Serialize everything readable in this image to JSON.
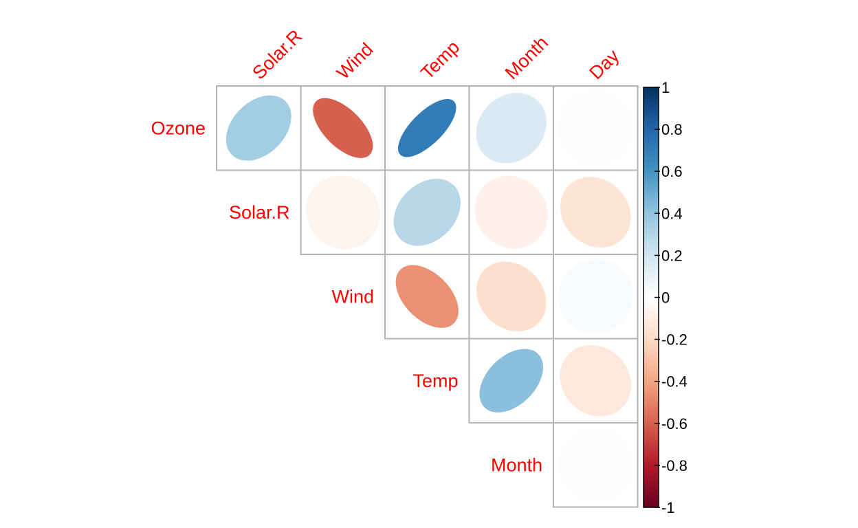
{
  "chart_data": {
    "type": "heatmap",
    "subtype": "correlation-matrix-ellipse-upper",
    "title": "",
    "columns": [
      "Solar.R",
      "Wind",
      "Temp",
      "Month",
      "Day"
    ],
    "rows": [
      "Ozone",
      "Solar.R",
      "Wind",
      "Temp",
      "Month"
    ],
    "label_color": "#FF0000",
    "cells": [
      {
        "row": "Ozone",
        "col": "Solar.R",
        "value": 0.35
      },
      {
        "row": "Ozone",
        "col": "Wind",
        "value": -0.6
      },
      {
        "row": "Ozone",
        "col": "Temp",
        "value": 0.7
      },
      {
        "row": "Ozone",
        "col": "Month",
        "value": 0.16
      },
      {
        "row": "Ozone",
        "col": "Day",
        "value": -0.01
      },
      {
        "row": "Solar.R",
        "col": "Wind",
        "value": -0.06
      },
      {
        "row": "Solar.R",
        "col": "Temp",
        "value": 0.28
      },
      {
        "row": "Solar.R",
        "col": "Month",
        "value": -0.08
      },
      {
        "row": "Solar.R",
        "col": "Day",
        "value": -0.15
      },
      {
        "row": "Wind",
        "col": "Temp",
        "value": -0.46
      },
      {
        "row": "Wind",
        "col": "Month",
        "value": -0.18
      },
      {
        "row": "Wind",
        "col": "Day",
        "value": 0.03
      },
      {
        "row": "Temp",
        "col": "Month",
        "value": 0.42
      },
      {
        "row": "Temp",
        "col": "Day",
        "value": -0.13
      },
      {
        "row": "Month",
        "col": "Day",
        "value": -0.01
      }
    ],
    "colorbar": {
      "ticks": [
        1,
        0.8,
        0.6,
        0.4,
        0.2,
        0,
        -0.2,
        -0.4,
        -0.6,
        -0.8,
        -1
      ],
      "tick_labels": [
        "1",
        "0.8",
        "0.6",
        "0.4",
        "0.2",
        "0",
        "-0.2",
        "-0.4",
        "-0.6",
        "-0.8",
        "-1"
      ],
      "range": [
        -1,
        1
      ],
      "placement": "right",
      "palette": [
        "#67001F",
        "#B2182B",
        "#D6604D",
        "#F4A582",
        "#FDDBC7",
        "#FFFFFF",
        "#D1E5F0",
        "#92C5DE",
        "#4393C3",
        "#2166AC",
        "#053061"
      ]
    }
  }
}
